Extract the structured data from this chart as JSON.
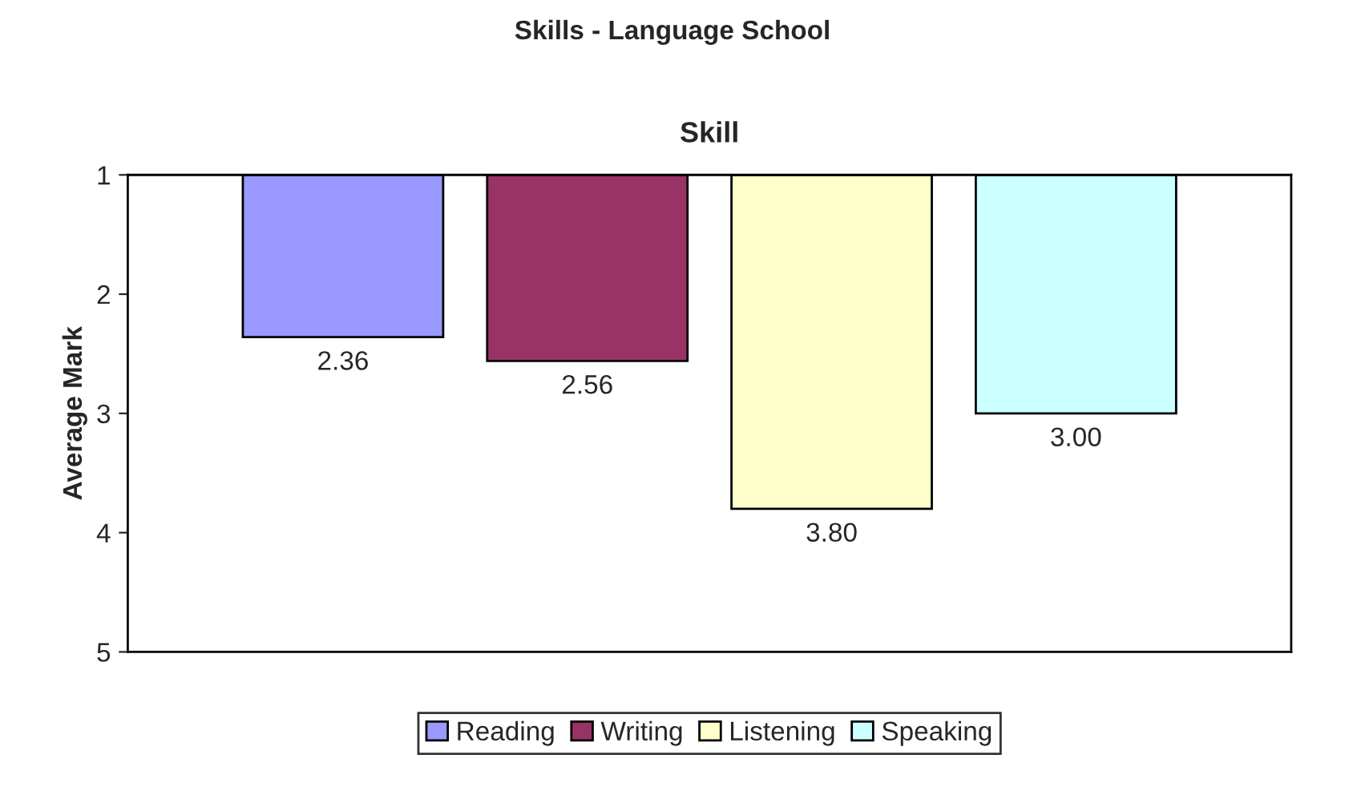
{
  "chart_data": {
    "type": "bar",
    "title": "Skills - Language School",
    "ylabel": "Average Mark",
    "categories": [
      "Skill"
    ],
    "series": [
      {
        "name": "Reading",
        "color": "#9999ff",
        "values": [
          2.36
        ],
        "value_labels": [
          "2.36"
        ]
      },
      {
        "name": "Writing",
        "color": "#993366",
        "values": [
          2.56
        ],
        "value_labels": [
          "2.56"
        ]
      },
      {
        "name": "Listening",
        "color": "#ffffcc",
        "values": [
          3.8
        ],
        "value_labels": [
          "3.80"
        ]
      },
      {
        "name": "Speaking",
        "color": "#ccffff",
        "values": [
          3.0
        ],
        "value_labels": [
          "3.00"
        ]
      }
    ],
    "ylim": [
      5,
      1
    ],
    "yticks": [
      1,
      2,
      3,
      4,
      5
    ],
    "grid": false,
    "legend": "bottom"
  }
}
